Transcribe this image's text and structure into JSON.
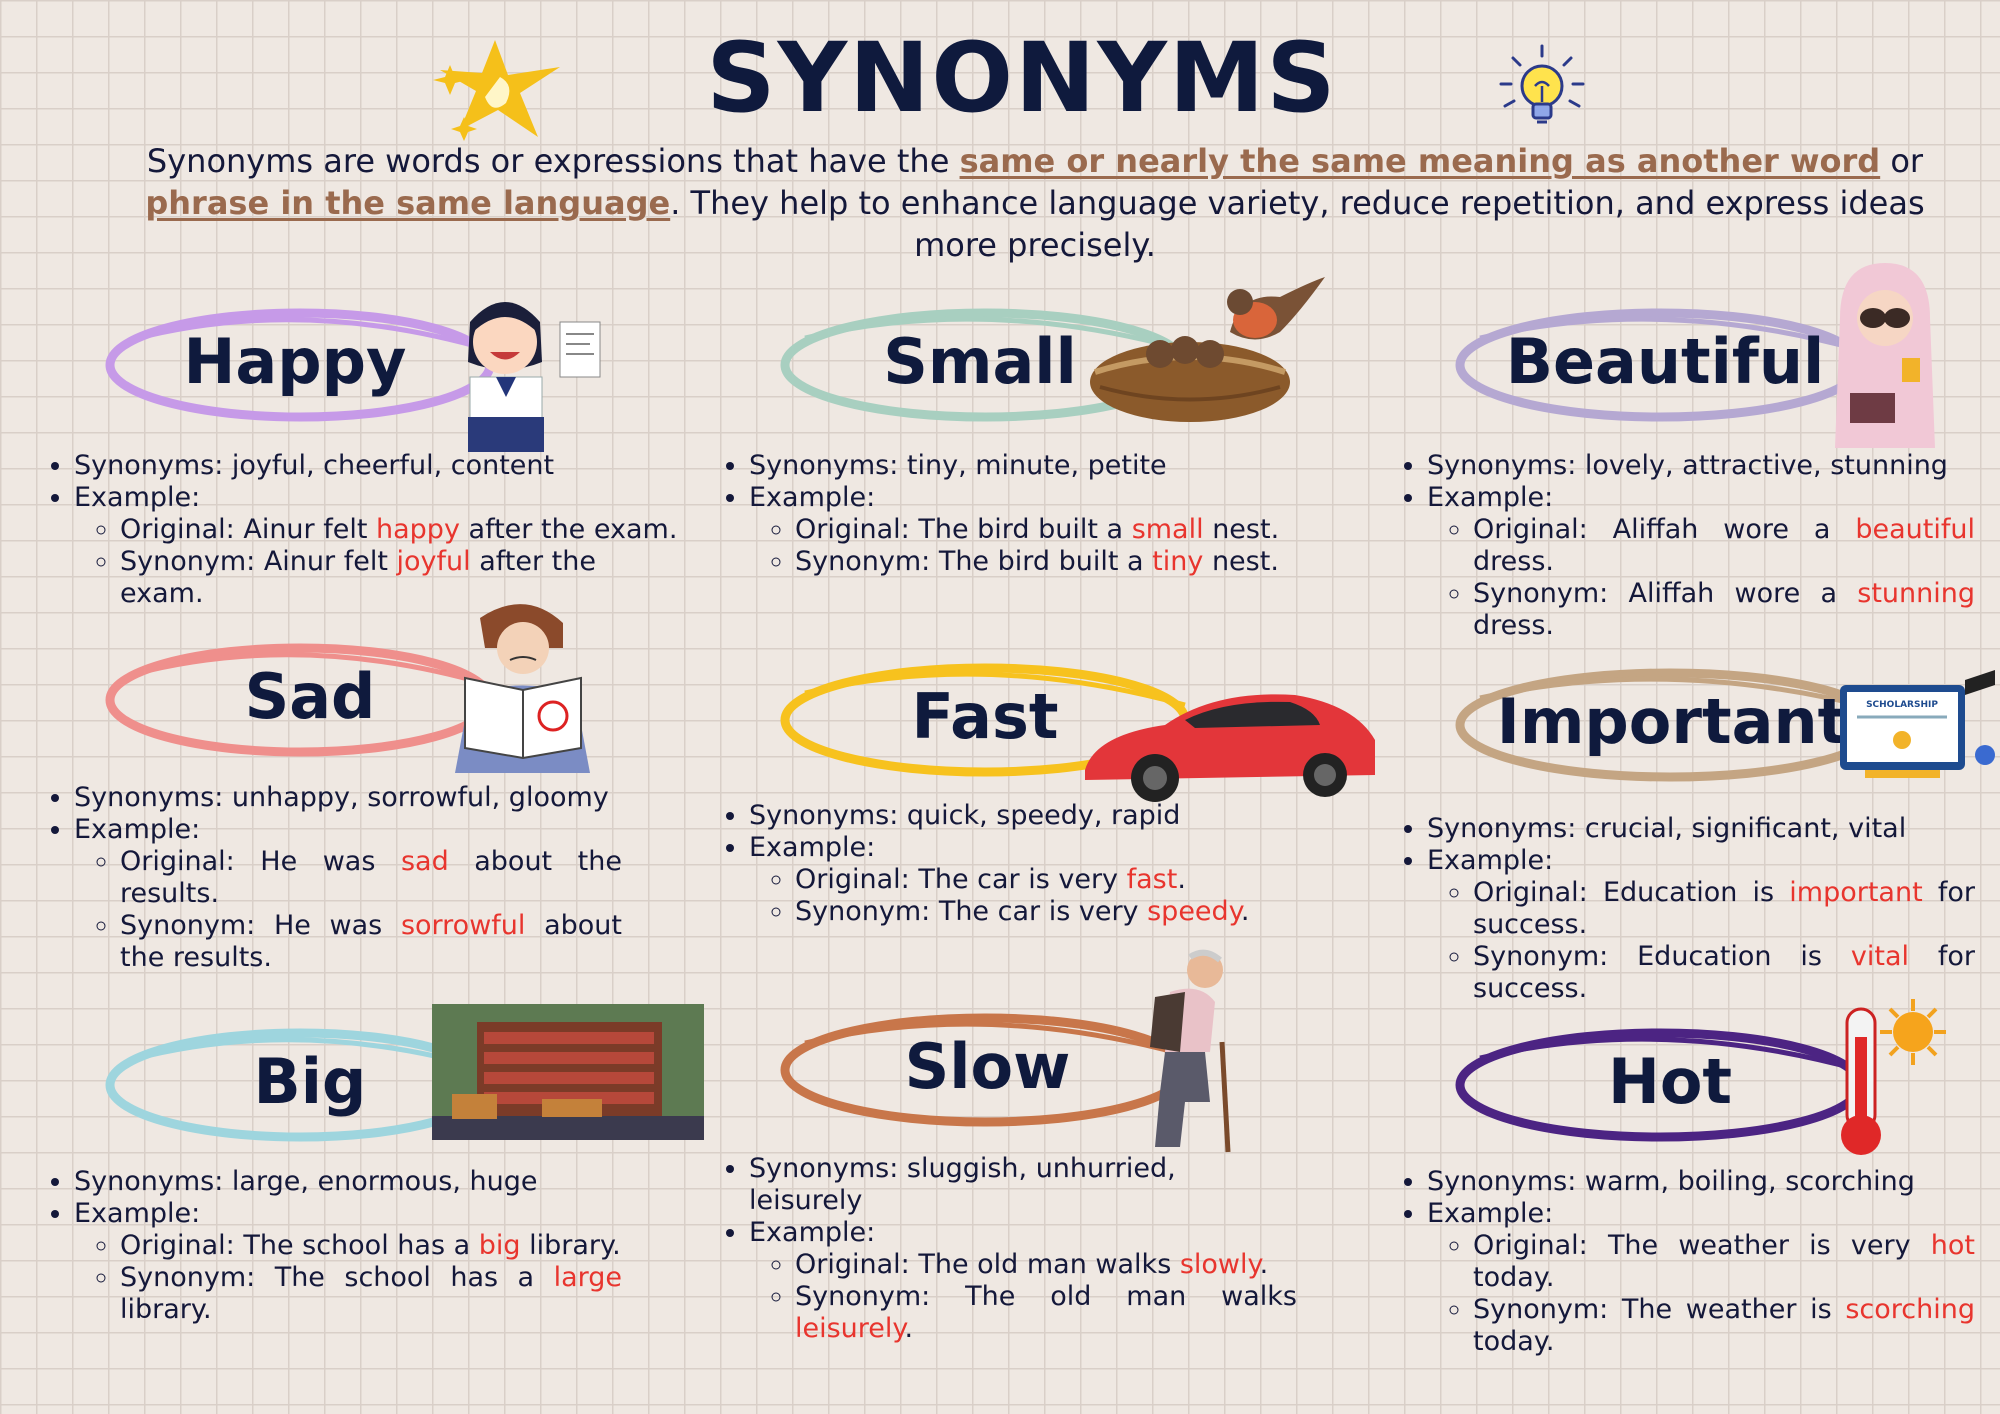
{
  "title": "SYNONYMS",
  "intro": {
    "before": "Synonyms are words or expressions that have the ",
    "highlight1": "same or nearly the same meaning as another word",
    "middle": " or ",
    "highlight2": "phrase in the same language",
    "after": ". They help to enhance language variety, reduce repetition, and express ideas more precisely."
  },
  "labels": {
    "synonyms": "Synonyms: ",
    "example": "Example:",
    "original": "Original: ",
    "synonym": "Synonym: "
  },
  "colors": {
    "happy": "#c69ae8",
    "small": "#a8cfc0",
    "beautiful": "#b5a8d2",
    "sad": "#ef8f8c",
    "fast": "#f7c21e",
    "important": "#c4a583",
    "big": "#9ed5de",
    "slow": "#c8764a",
    "hot": "#4c2483",
    "highlight": "#e8352e"
  },
  "icons": [
    "sparkle-stars-icon",
    "light-bulb-icon"
  ],
  "cards": {
    "happy": {
      "word": "Happy",
      "synonyms": "joyful, cheerful, content",
      "orig_pre": "Ainur felt ",
      "orig_word": "happy",
      "orig_post": " after the exam.",
      "syn_pre": "Ainur felt ",
      "syn_word": "joyful",
      "syn_post": " after the exam.",
      "image": "smiling-student-illustration"
    },
    "small": {
      "word": "Small",
      "synonyms": "tiny, minute, petite",
      "orig_pre": "The bird built a ",
      "orig_word": "small",
      "orig_post": " nest.",
      "syn_pre": "The bird built a ",
      "syn_word": "tiny",
      "syn_post": " nest.",
      "image": "bird-nest-illustration"
    },
    "beautiful": {
      "word": "Beautiful",
      "synonyms": "lovely, attractive, stunning",
      "orig_pre": "Aliffah wore a ",
      "orig_word": "beautiful",
      "orig_post": " dress.",
      "syn_pre": "Aliffah wore a ",
      "syn_word": "stunning",
      "syn_post": " dress.",
      "image": "woman-in-hijab-illustration"
    },
    "sad": {
      "word": "Sad",
      "synonyms": "unhappy, sorrowful, gloomy",
      "orig_pre": "He was ",
      "orig_word": "sad",
      "orig_post": " about the results.",
      "syn_pre": "He was ",
      "syn_word": "sorrowful",
      "syn_post": " about the results.",
      "image": "sad-boy-reading-illustration"
    },
    "fast": {
      "word": "Fast",
      "synonyms": "quick, speedy, rapid",
      "orig_pre": "The car is very ",
      "orig_word": "fast",
      "orig_post": ".",
      "syn_pre": "The car is very ",
      "syn_word": "speedy",
      "syn_post": ".",
      "image": "red-sports-car-illustration"
    },
    "important": {
      "word": "Important",
      "synonyms": "crucial, significant, vital",
      "orig_pre": "Education is ",
      "orig_word": "important",
      "orig_post": " for success.",
      "syn_pre": "Education is ",
      "syn_word": "vital",
      "syn_post": " for success.",
      "image": "scholarship-illustration",
      "image_text": "SCHOLARSHIP"
    },
    "big": {
      "word": "Big",
      "synonyms": "large, enormous, huge",
      "orig_pre": "The school has a ",
      "orig_word": "big",
      "orig_post": " library.",
      "syn_pre": "The school has a ",
      "syn_word": "large",
      "syn_post": " library.",
      "image": "library-illustration"
    },
    "slow": {
      "word": "Slow",
      "synonyms": "sluggish, unhurried, leisurely",
      "orig_pre": "The old man walks ",
      "orig_word": "slowly",
      "orig_post": ".",
      "syn_pre": "The old man walks ",
      "syn_word": "leisurely",
      "syn_post": ".",
      "image": "old-man-walking-illustration"
    },
    "hot": {
      "word": "Hot",
      "synonyms": "warm, boiling, scorching",
      "orig_pre": "The weather is very ",
      "orig_word": "hot",
      "orig_post": " today.",
      "syn_pre": "The weather is ",
      "syn_word": "scorching",
      "syn_post": " today.",
      "image": "thermometer-sun-illustration"
    }
  }
}
